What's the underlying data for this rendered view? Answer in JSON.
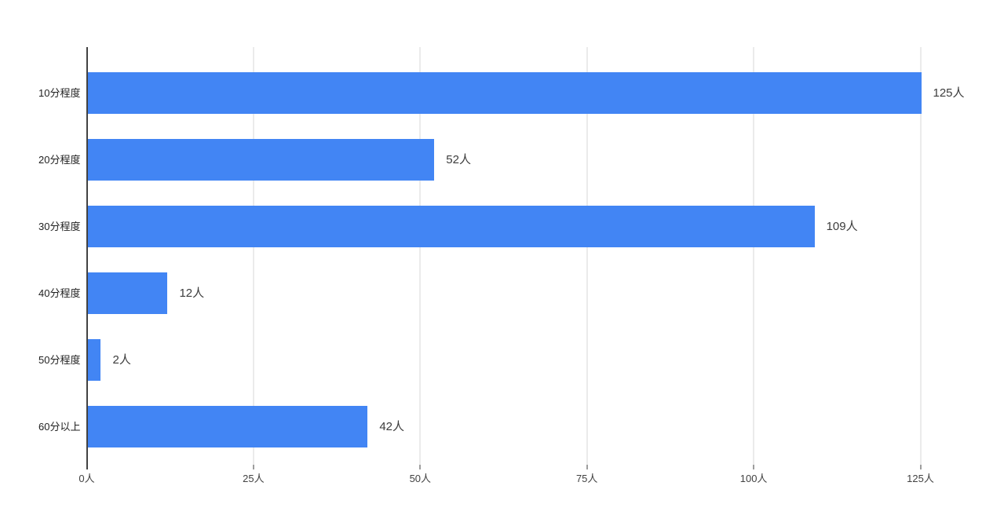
{
  "chart_data": {
    "type": "bar",
    "orientation": "horizontal",
    "title": "",
    "xlabel": "",
    "ylabel": "",
    "legend": "none",
    "grid": "vertical",
    "categories": [
      "10分程度",
      "20分程度",
      "30分程度",
      "40分程度",
      "50分程度",
      "60分以上"
    ],
    "values": [
      125,
      52,
      109,
      12,
      2,
      42
    ],
    "value_labels": [
      "125人",
      "52人",
      "109人",
      "12人",
      "2人",
      "42人"
    ],
    "x_ticks": [
      0,
      25,
      50,
      75,
      100,
      125
    ],
    "x_tick_labels": [
      "0人",
      "25人",
      "50人",
      "75人",
      "100人",
      "125人"
    ],
    "xlim": [
      0,
      125
    ],
    "unit": "人",
    "colors": {
      "bar": "#4285f4",
      "background": "#ffffff",
      "axis_line": "#424242",
      "gridline": "#ebebeb",
      "tick_label": "#424242",
      "category_label": "#1f1f1f",
      "value_label": "#3c3c3c"
    }
  }
}
